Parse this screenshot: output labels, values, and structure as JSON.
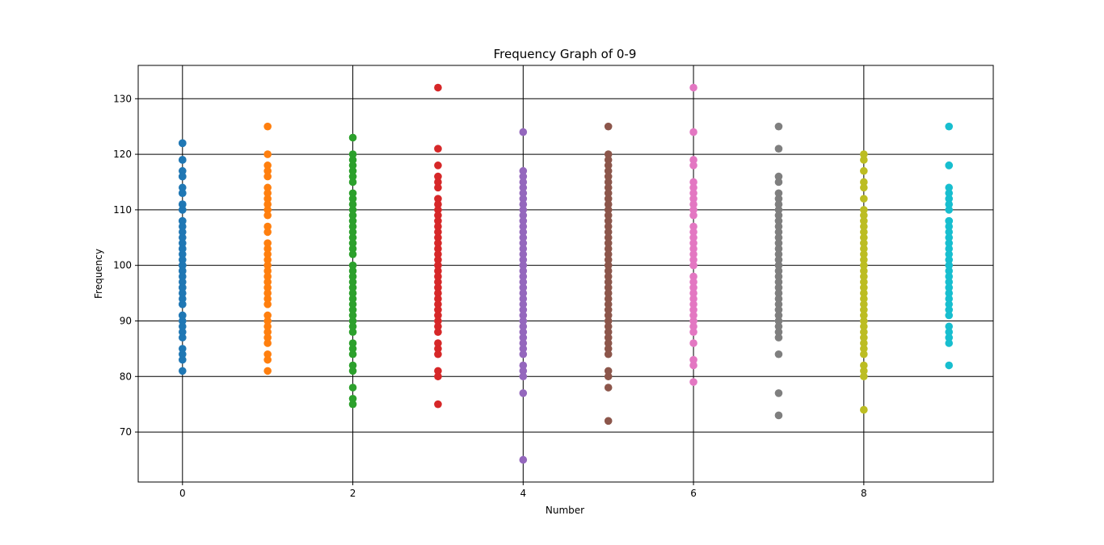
{
  "chart_data": {
    "type": "scatter",
    "title": "Frequency Graph of 0-9",
    "xlabel": "Number",
    "ylabel": "Frequency",
    "xlim": [
      -0.52,
      9.52
    ],
    "ylim": [
      61,
      136
    ],
    "xticks": [
      0,
      2,
      4,
      6,
      8
    ],
    "yticks": [
      70,
      80,
      90,
      100,
      110,
      120,
      130
    ],
    "grid": true,
    "series": [
      {
        "x": 0,
        "color": "#1f77b4",
        "values": [
          122,
          122,
          119,
          119,
          117,
          116,
          116,
          114,
          113,
          113,
          111,
          111,
          110,
          110,
          108,
          108,
          107,
          106,
          105,
          104,
          103,
          103,
          102,
          101,
          100,
          100,
          99,
          99,
          98,
          97,
          96,
          96,
          95,
          94,
          93,
          93,
          91,
          91,
          90,
          89,
          88,
          87,
          85,
          84,
          83,
          81
        ]
      },
      {
        "x": 1,
        "color": "#ff7f0e",
        "values": [
          125,
          120,
          118,
          117,
          116,
          114,
          113,
          112,
          111,
          110,
          109,
          107,
          106,
          104,
          103,
          102,
          101,
          100,
          99,
          98,
          97,
          96,
          95,
          94,
          93,
          91,
          90,
          89,
          88,
          87,
          86,
          84,
          83,
          81
        ]
      },
      {
        "x": 2,
        "color": "#2ca02c",
        "values": [
          123,
          120,
          119,
          118,
          117,
          116,
          115,
          113,
          112,
          111,
          110,
          109,
          108,
          107,
          106,
          105,
          104,
          103,
          102,
          100,
          99,
          98,
          97,
          96,
          95,
          94,
          93,
          92,
          91,
          90,
          89,
          88,
          86,
          85,
          84,
          82,
          81,
          78,
          76,
          75
        ]
      },
      {
        "x": 3,
        "color": "#d62728",
        "values": [
          132,
          121,
          118,
          116,
          115,
          114,
          112,
          111,
          110,
          109,
          108,
          107,
          106,
          105,
          104,
          103,
          102,
          101,
          100,
          99,
          98,
          97,
          96,
          95,
          94,
          93,
          92,
          91,
          90,
          89,
          88,
          86,
          85,
          84,
          81,
          80,
          75
        ]
      },
      {
        "x": 4,
        "color": "#9467bd",
        "values": [
          124,
          117,
          116,
          115,
          114,
          113,
          112,
          111,
          110,
          109,
          108,
          107,
          106,
          105,
          104,
          103,
          102,
          101,
          100,
          99,
          98,
          97,
          96,
          95,
          94,
          93,
          92,
          91,
          90,
          89,
          88,
          87,
          86,
          85,
          84,
          82,
          81,
          80,
          77,
          65
        ]
      },
      {
        "x": 5,
        "color": "#8c564b",
        "values": [
          125,
          120,
          119,
          118,
          117,
          116,
          115,
          114,
          113,
          112,
          111,
          110,
          109,
          108,
          107,
          106,
          105,
          104,
          103,
          102,
          101,
          100,
          99,
          98,
          97,
          96,
          95,
          94,
          93,
          92,
          91,
          90,
          89,
          88,
          87,
          86,
          85,
          84,
          81,
          80,
          78,
          72
        ]
      },
      {
        "x": 6,
        "color": "#e377c2",
        "values": [
          132,
          124,
          119,
          118,
          115,
          114,
          113,
          112,
          111,
          110,
          109,
          107,
          106,
          105,
          104,
          103,
          102,
          101,
          100,
          98,
          97,
          96,
          95,
          94,
          93,
          92,
          91,
          90,
          89,
          88,
          86,
          83,
          82,
          79
        ]
      },
      {
        "x": 7,
        "color": "#7f7f7f",
        "values": [
          125,
          121,
          116,
          115,
          113,
          112,
          111,
          110,
          109,
          108,
          107,
          106,
          105,
          104,
          103,
          102,
          101,
          100,
          99,
          98,
          97,
          96,
          95,
          94,
          93,
          92,
          91,
          90,
          89,
          88,
          87,
          84,
          77,
          73
        ]
      },
      {
        "x": 8,
        "color": "#bcbd22",
        "values": [
          120,
          119,
          117,
          115,
          114,
          112,
          110,
          109,
          108,
          107,
          106,
          105,
          104,
          103,
          102,
          101,
          100,
          99,
          98,
          97,
          96,
          95,
          94,
          93,
          92,
          91,
          90,
          89,
          88,
          87,
          86,
          85,
          84,
          82,
          81,
          80,
          74
        ]
      },
      {
        "x": 9,
        "color": "#17becf",
        "values": [
          125,
          118,
          118,
          114,
          113,
          112,
          111,
          110,
          108,
          108,
          107,
          106,
          105,
          104,
          103,
          102,
          101,
          100,
          99,
          98,
          97,
          96,
          95,
          94,
          93,
          92,
          91,
          89,
          88,
          87,
          86,
          82
        ]
      }
    ]
  }
}
